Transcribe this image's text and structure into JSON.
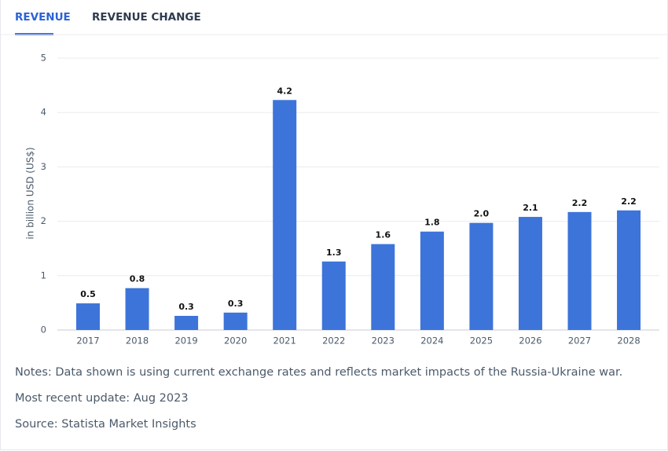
{
  "tabs": [
    "REVENUE",
    "REVENUE CHANGE"
  ],
  "chart_data": {
    "type": "bar",
    "ylabel": "in billion USD (US$)",
    "categories": [
      "2017",
      "2018",
      "2019",
      "2020",
      "2021",
      "2022",
      "2023",
      "2024",
      "2025",
      "2026",
      "2027",
      "2028"
    ],
    "values": [
      0.49,
      0.77,
      0.26,
      0.32,
      4.23,
      1.26,
      1.58,
      1.81,
      1.97,
      2.08,
      2.17,
      2.2
    ],
    "value_labels": [
      "0.5",
      "0.8",
      "0.3",
      "0.3",
      "4.2",
      "1.3",
      "1.6",
      "1.8",
      "2.0",
      "2.1",
      "2.2",
      "2.2"
    ],
    "color": "#3d74d9",
    "ylim": [
      0,
      5
    ],
    "yticks": [
      0,
      1,
      2,
      3,
      4,
      5
    ],
    "grid": true
  },
  "notes": [
    "Notes: Data shown is using current exchange rates and reflects market impacts of the Russia-Ukraine war.",
    "Most recent update: Aug 2023",
    "Source: Statista Market Insights"
  ]
}
